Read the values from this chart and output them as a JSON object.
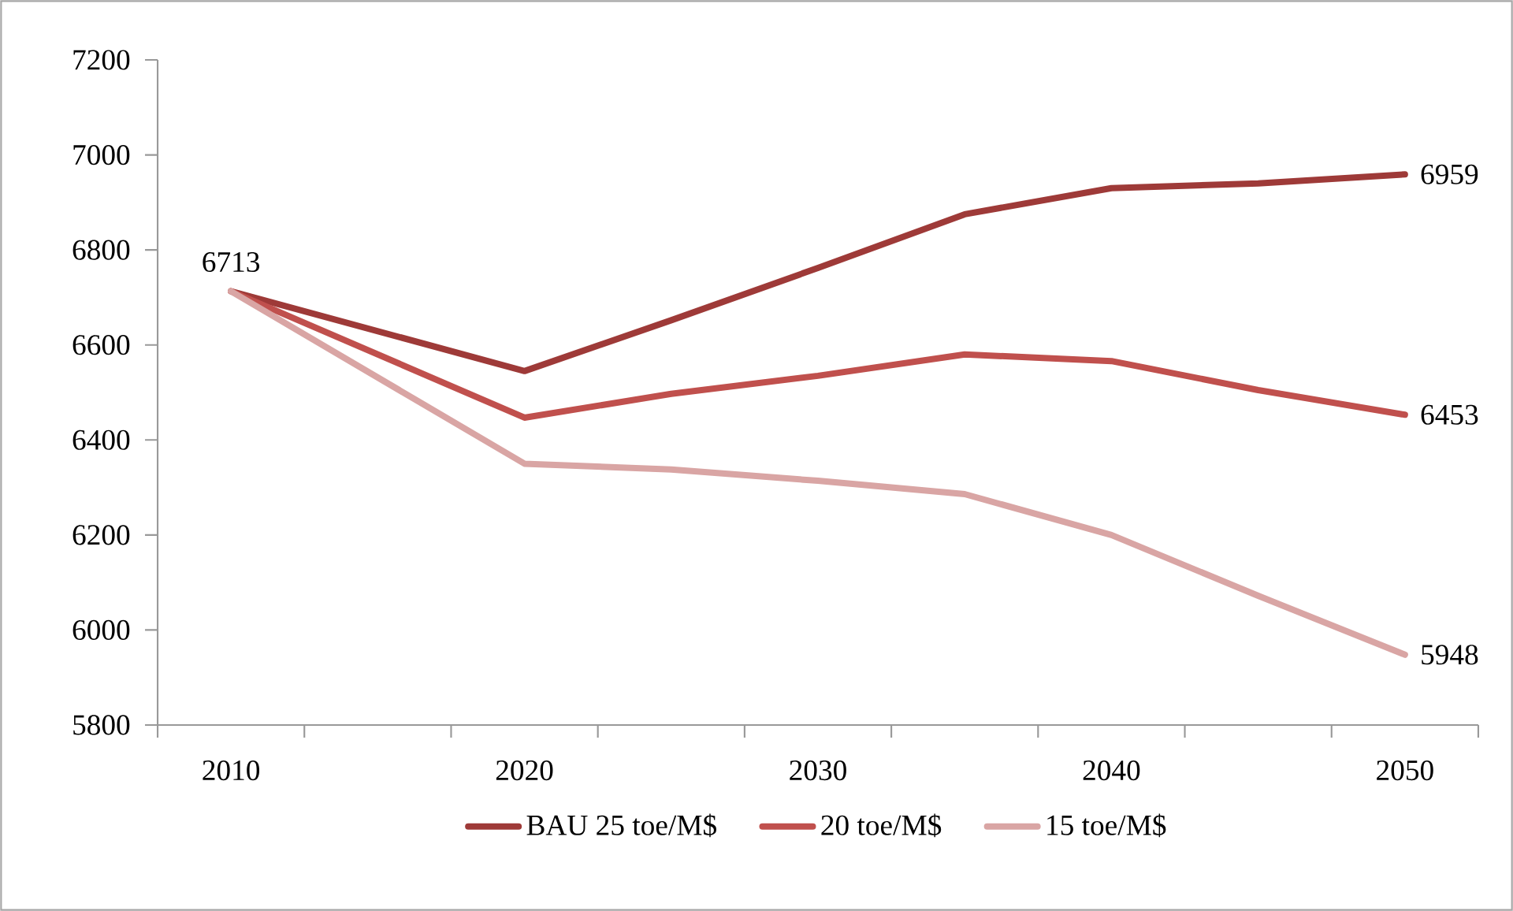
{
  "chart_data": {
    "type": "line",
    "categories": [
      "2010",
      null,
      "2020",
      null,
      "2030",
      null,
      "2040",
      null,
      "2050"
    ],
    "series": [
      {
        "name": "BAU 25 toe/M$",
        "color": "#9e3a38",
        "values": [
          6713,
          null,
          6545,
          6652,
          6762,
          6875,
          6930,
          6940,
          6959
        ],
        "value_labels": [
          "6713",
          null,
          null,
          null,
          null,
          null,
          null,
          null,
          "6959"
        ]
      },
      {
        "name": "20 toe/M$",
        "color": "#c0504d",
        "values": [
          6713,
          null,
          6447,
          6497,
          6535,
          6580,
          6566,
          6505,
          6453
        ],
        "value_labels": [
          null,
          null,
          null,
          null,
          null,
          null,
          null,
          null,
          "6453"
        ]
      },
      {
        "name": "15 toe/M$",
        "color": "#d9a5a4",
        "values": [
          6713,
          null,
          6350,
          6338,
          6314,
          6286,
          6200,
          6072,
          5948
        ],
        "value_labels": [
          null,
          null,
          null,
          null,
          null,
          null,
          null,
          null,
          "5948"
        ]
      }
    ],
    "ylim": [
      5800,
      7200
    ],
    "yticks": [
      5800,
      6000,
      6200,
      6400,
      6600,
      6800,
      7000,
      7200
    ],
    "grid": false,
    "legend": "bottom",
    "marker": "none",
    "line_style": "solid"
  }
}
